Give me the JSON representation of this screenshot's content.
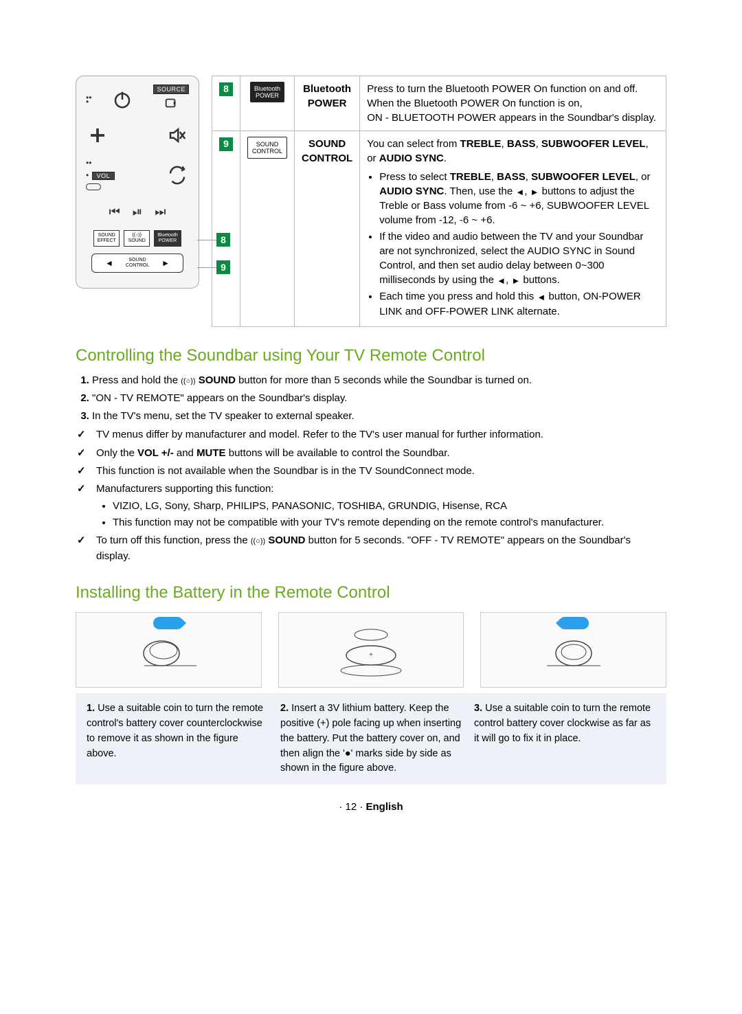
{
  "remote": {
    "source_label": "SOURCE",
    "vol_label": "VOL",
    "btn_sound_effect": "SOUND\nEFFECT",
    "btn_surround_sound": "((○))\nSOUND",
    "btn_bt_power": "Bluetooth\nPOWER",
    "btn_sound_control": "SOUND\nCONTROL",
    "callout8": "8",
    "callout9": "9"
  },
  "table": {
    "rows": [
      {
        "num": "8",
        "icon_text": "Bluetooth\nPOWER",
        "icon_variant": "dark",
        "label_line1": "Bluetooth",
        "label_line2": "POWER",
        "desc_html": "Press to turn the Bluetooth POWER On function on and off. When the Bluetooth POWER On function is on,<br>ON - BLUETOOTH POWER appears in the Soundbar's display."
      },
      {
        "num": "9",
        "icon_text": "SOUND\nCONTROL",
        "icon_variant": "outline",
        "label_line1": "SOUND",
        "label_line2": "CONTROL",
        "desc_intro_html": "You can select from <b>TREBLE</b>, <b>BASS</b>, <b>SUBWOOFER LEVEL</b>, or <b>AUDIO SYNC</b>.",
        "bullets_html": [
          "Press to select <b>TREBLE</b>, <b>BASS</b>, <b>SUBWOOFER LEVEL</b>, or <b>AUDIO SYNC</b>. Then, use the <span class='tri'>◄</span>, <span class='tri'>►</span> buttons to adjust the Treble or Bass volume from -6 ~ +6, SUBWOOFER LEVEL volume from -12, -6 ~ +6.",
          "If the video and audio between the TV and your Soundbar are not synchronized, select the AUDIO SYNC in Sound Control, and then set audio delay between 0~300 milliseconds by using the <span class='tri'>◄</span>, <span class='tri'>►</span> buttons.",
          "Each time you press and hold this <span class='tri'>◄</span> button, ON-POWER LINK and OFF-POWER LINK alternate."
        ]
      }
    ]
  },
  "section_tv": {
    "heading": "Controlling the Soundbar using Your TV Remote Control",
    "ol": [
      "Press and hold the <span class='sound-sym'>((○))</span> <b>SOUND</b> button for more than 5 seconds while the Soundbar is turned on.",
      "\"ON - TV REMOTE\" appears on the Soundbar's display.",
      "In the TV's menu, set the TV speaker to external speaker."
    ],
    "checks": [
      {
        "text": "TV menus differ by manufacturer and model. Refer to the TV's user manual for further information."
      },
      {
        "text": "Only the <b>VOL +/-</b> and <b>MUTE</b> buttons will be available to control the Soundbar."
      },
      {
        "text": "This function is not available when the Soundbar is in the TV SoundConnect mode."
      },
      {
        "text": "Manufacturers supporting this function:",
        "sub": [
          "VIZIO, LG, Sony, Sharp, PHILIPS, PANASONIC, TOSHIBA, GRUNDIG, Hisense, RCA",
          "This function may not be compatible with your TV's remote depending on the remote control's manufacturer."
        ]
      },
      {
        "text": "To turn off this function, press the <span class='sound-sym'>((○))</span> <b>SOUND</b> button for 5 seconds. \"OFF - TV REMOTE\" appears on the Soundbar's display."
      }
    ]
  },
  "section_battery": {
    "heading": "Installing the Battery in the Remote Control",
    "steps": [
      {
        "n": "1.",
        "text": "Use a suitable coin to turn the remote control's battery cover counterclockwise to remove it as shown in the figure above."
      },
      {
        "n": "2.",
        "text": "Insert a 3V lithium battery. Keep the positive (+) pole facing up when inserting the battery. Put the battery cover on, and then align the '●' marks side by side as shown in the figure above."
      },
      {
        "n": "3.",
        "text": "Use a suitable coin to turn the remote control battery cover clockwise as far as it will go to fix it in place."
      }
    ]
  },
  "footer": {
    "page": "· 12 ·",
    "lang": "English"
  }
}
